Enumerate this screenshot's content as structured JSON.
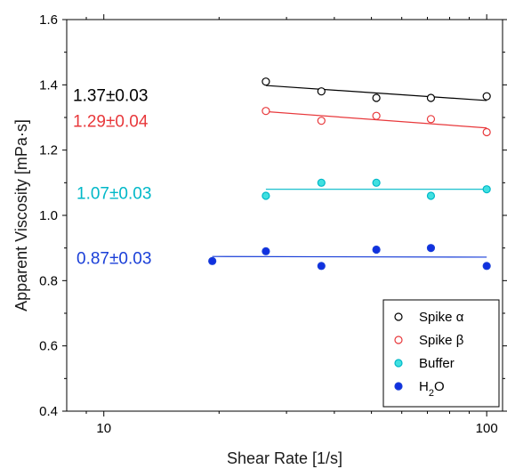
{
  "chart_data": {
    "type": "scatter",
    "xscale": "log",
    "xlim": [
      8,
      110
    ],
    "ylim": [
      0.4,
      1.6
    ],
    "xlabel": "Shear Rate [1/s]",
    "ylabel": "Apparent Viscosity [mPa·s]",
    "xticks": [
      10,
      100
    ],
    "xtick_labels": [
      "10",
      "100"
    ],
    "yticks": [
      0.4,
      0.6,
      0.8,
      1.0,
      1.2,
      1.4,
      1.6
    ],
    "ytick_labels": [
      "0.4",
      "0.6",
      "0.8",
      "1.0",
      "1.2",
      "1.4",
      "1.6"
    ],
    "grid": false,
    "legend_position": "bottom-right",
    "series": [
      {
        "name": "Spike α",
        "label_parts": [
          "Spike α"
        ],
        "color": "#000000",
        "marker": "open-circle",
        "x": [
          26.5,
          37,
          51.5,
          71.5,
          100
        ],
        "y": [
          1.41,
          1.38,
          1.36,
          1.36,
          1.365
        ],
        "fit": {
          "x": [
            26.5,
            100
          ],
          "y": [
            1.398,
            1.352
          ]
        },
        "annotation": "1.37±0.03"
      },
      {
        "name": "Spike β",
        "label_parts": [
          "Spike β"
        ],
        "color": "#e8383b",
        "marker": "open-circle",
        "x": [
          26.5,
          37,
          51.5,
          71.5,
          100
        ],
        "y": [
          1.32,
          1.29,
          1.305,
          1.295,
          1.255
        ],
        "fit": {
          "x": [
            26.5,
            100
          ],
          "y": [
            1.318,
            1.268
          ]
        },
        "annotation": "1.29±0.04"
      },
      {
        "name": "Buffer",
        "label_parts": [
          "Buffer"
        ],
        "color": "#00b8c8",
        "fill": "#40e0e0",
        "marker": "filled-circle",
        "x": [
          26.5,
          37,
          51.5,
          71.5,
          100
        ],
        "y": [
          1.06,
          1.1,
          1.1,
          1.06,
          1.08
        ],
        "fit": {
          "x": [
            26.5,
            100
          ],
          "y": [
            1.08,
            1.08
          ]
        },
        "annotation": "1.07±0.03"
      },
      {
        "name": "H2O",
        "label_parts": [
          "H",
          "2",
          "O"
        ],
        "color": "#1a3fd8",
        "fill": "#1030e0",
        "marker": "filled-circle",
        "x": [
          19.2,
          26.5,
          37,
          51.5,
          71.5,
          100
        ],
        "y": [
          0.86,
          0.89,
          0.845,
          0.895,
          0.9,
          0.845
        ],
        "fit": {
          "x": [
            19.2,
            100
          ],
          "y": [
            0.874,
            0.872
          ]
        },
        "annotation": "0.87±0.03"
      }
    ]
  }
}
